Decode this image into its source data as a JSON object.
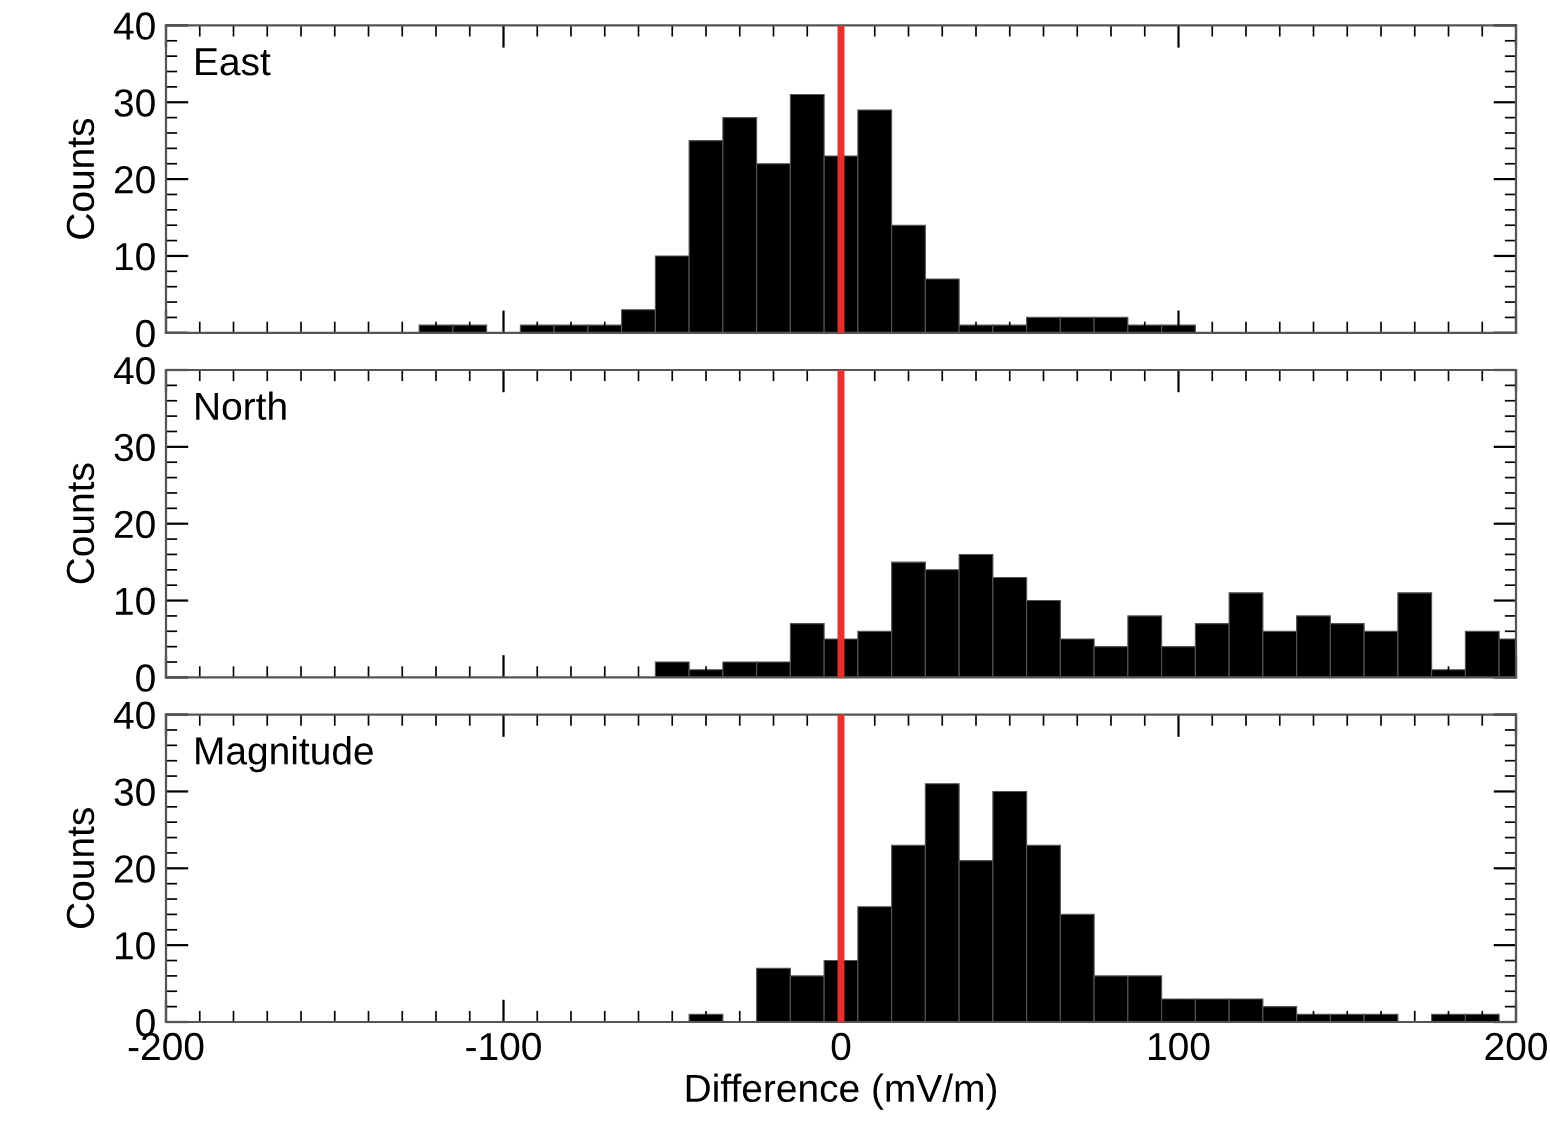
{
  "chart_data": [
    {
      "type": "histogram",
      "title": "East",
      "ylabel": "Counts",
      "color": "#000000",
      "bins": [
        -125,
        -115,
        -105,
        -95,
        -85,
        -75,
        -65,
        -55,
        -45,
        -35,
        -25,
        -15,
        -5,
        5,
        15,
        25,
        35,
        45,
        55,
        65,
        75,
        85,
        95,
        105
      ],
      "values": [
        1,
        1,
        0,
        1,
        1,
        1,
        3,
        10,
        25,
        28,
        22,
        31,
        23,
        29,
        14,
        7,
        1,
        1,
        2,
        2,
        2,
        1,
        1
      ],
      "xlim": [
        -200,
        200
      ],
      "xticks": [
        -200,
        -100,
        0,
        100,
        200
      ],
      "ylim": [
        0,
        40
      ],
      "yticks": [
        0,
        10,
        20,
        30,
        40
      ],
      "tick_labels": "y",
      "grid": false,
      "legend": false,
      "ref_lines": [
        {
          "axis": "x",
          "value": 0,
          "color": "#e8302a"
        }
      ]
    },
    {
      "type": "histogram",
      "title": "North",
      "ylabel": "Counts",
      "color": "#000000",
      "bins": [
        -55,
        -45,
        -35,
        -25,
        -15,
        -5,
        5,
        15,
        25,
        35,
        45,
        55,
        65,
        75,
        85,
        95,
        105,
        115,
        125,
        135,
        145,
        155,
        165,
        175,
        185,
        195,
        200
      ],
      "values": [
        2,
        1,
        2,
        2,
        7,
        5,
        6,
        15,
        14,
        16,
        13,
        10,
        5,
        4,
        8,
        4,
        7,
        11,
        6,
        8,
        7,
        6,
        11,
        1,
        6,
        5
      ],
      "xlim": [
        -200,
        200
      ],
      "xticks": [
        -200,
        -100,
        0,
        100,
        200
      ],
      "ylim": [
        0,
        40
      ],
      "yticks": [
        0,
        10,
        20,
        30,
        40
      ],
      "tick_labels": "y",
      "grid": false,
      "legend": false,
      "ref_lines": [
        {
          "axis": "x",
          "value": 0,
          "color": "#e8302a"
        }
      ]
    },
    {
      "type": "histogram",
      "title": "Magnitude",
      "ylabel": "Counts",
      "xlabel": "Difference (mV/m)",
      "color": "#000000",
      "bins": [
        -45,
        -35,
        -25,
        -15,
        -5,
        5,
        15,
        25,
        35,
        45,
        55,
        65,
        75,
        85,
        95,
        105,
        115,
        125,
        135,
        145,
        155,
        165,
        175,
        185,
        195
      ],
      "values": [
        1,
        0,
        7,
        6,
        8,
        15,
        23,
        31,
        21,
        30,
        23,
        14,
        6,
        6,
        3,
        3,
        3,
        2,
        1,
        1,
        1,
        0,
        1,
        1
      ],
      "xlim": [
        -200,
        200
      ],
      "xticks": [
        -200,
        -100,
        0,
        100,
        200
      ],
      "ylim": [
        0,
        40
      ],
      "yticks": [
        0,
        10,
        20,
        30,
        40
      ],
      "grid": false,
      "legend": false,
      "ref_lines": [
        {
          "axis": "x",
          "value": 0,
          "color": "#e8302a"
        }
      ]
    }
  ]
}
